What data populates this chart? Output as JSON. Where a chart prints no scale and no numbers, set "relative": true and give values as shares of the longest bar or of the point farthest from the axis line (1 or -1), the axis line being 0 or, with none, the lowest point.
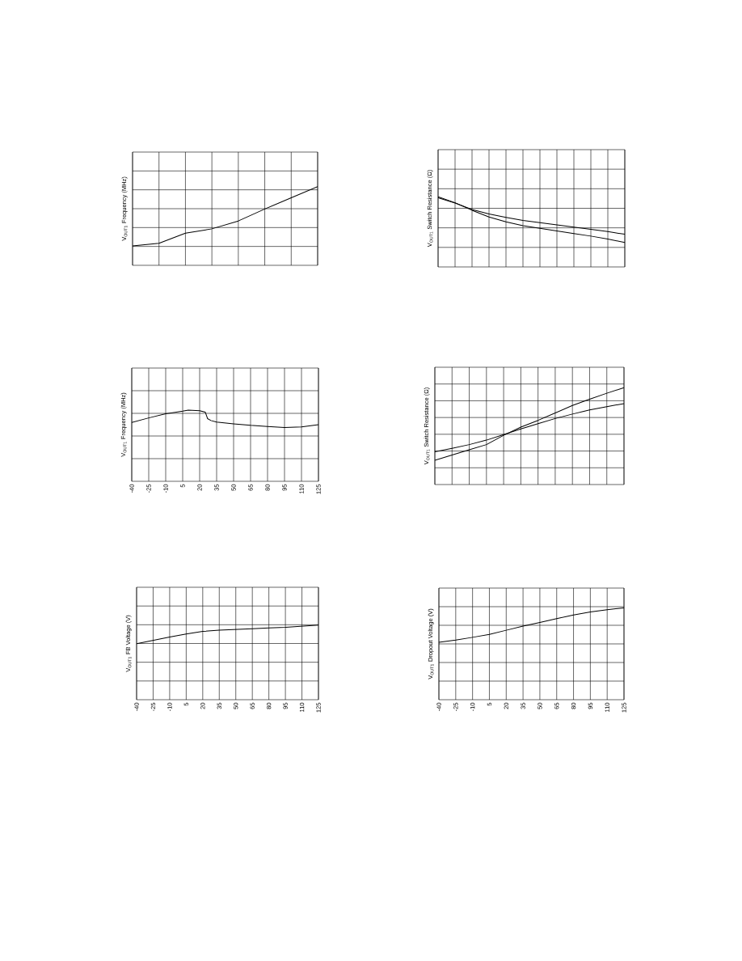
{
  "chart_data": [
    {
      "type": "line",
      "ylabel": "V$_{OUT1}$ Frequency (MHz)",
      "relative": true,
      "grid": true,
      "color": "#000000",
      "categories": [
        null,
        null,
        null,
        null,
        null,
        null,
        null,
        null
      ],
      "values": [
        0.246,
        0.28,
        0.408,
        0.464,
        0.564,
        0.716,
        0.858,
        1.0
      ]
    },
    {
      "type": "line",
      "ylabel": "V$_{OUT1}$ Switch Resistance (Ω)",
      "relative": true,
      "grid": true,
      "categories": [
        null,
        null,
        null,
        null,
        null,
        null,
        null,
        null,
        null,
        null,
        null,
        null
      ],
      "series": [
        {
          "color": "#000000",
          "values": [
            0.984,
            0.909,
            0.818,
            0.754,
            0.706,
            0.663,
            0.631,
            0.599,
            0.567,
            0.535,
            0.503,
            0.465
          ]
        },
        {
          "color": "#000000",
          "values": [
            1.0,
            0.914,
            0.807,
            0.711,
            0.642,
            0.588,
            0.551,
            0.513,
            0.476,
            0.439,
            0.396,
            0.348
          ]
        }
      ]
    },
    {
      "type": "line",
      "ylabel": "V$_{OUT1}$ Frequency (MHz)",
      "relative": true,
      "grid": true,
      "color": "#000000",
      "x": [
        -40,
        -25,
        -10,
        5,
        10,
        20,
        25,
        27,
        30,
        35,
        50,
        65,
        80,
        95,
        110,
        125
      ],
      "values": [
        0.827,
        0.89,
        0.948,
        0.984,
        1.0,
        0.99,
        0.97,
        0.88,
        0.853,
        0.832,
        0.806,
        0.785,
        0.77,
        0.754,
        0.764,
        0.796
      ],
      "xlim": [
        -40,
        125
      ],
      "xticks": [
        -40,
        -25,
        -10,
        5,
        20,
        35,
        50,
        65,
        80,
        95,
        110,
        125
      ]
    },
    {
      "type": "line",
      "ylabel": "V$_{OUT1}$ Switch Resistance (Ω)",
      "relative": true,
      "grid": true,
      "categories": [
        null,
        null,
        null,
        null,
        null,
        null,
        null,
        null,
        null,
        null,
        null,
        null
      ],
      "series": [
        {
          "color": "#000000",
          "values": [
            0.25,
            0.304,
            0.358,
            0.412,
            0.508,
            0.592,
            0.662,
            0.738,
            0.815,
            0.881,
            0.942,
            1.0
          ]
        },
        {
          "color": "#000000",
          "values": [
            0.338,
            0.373,
            0.412,
            0.458,
            0.515,
            0.573,
            0.627,
            0.681,
            0.727,
            0.769,
            0.804,
            0.835
          ]
        }
      ]
    },
    {
      "type": "line",
      "ylabel": "V$_{OUT1}$ FB Voltage (V)",
      "relative": true,
      "grid": true,
      "color": "#000000",
      "x": [
        -40,
        -25,
        -10,
        5,
        20,
        35,
        50,
        65,
        80,
        95,
        110,
        125
      ],
      "values": [
        0.75,
        0.795,
        0.84,
        0.88,
        0.915,
        0.93,
        0.94,
        0.95,
        0.96,
        0.97,
        0.985,
        1.0
      ],
      "xlim": [
        -40,
        125
      ],
      "xticks": [
        -40,
        -25,
        -10,
        5,
        20,
        35,
        50,
        65,
        80,
        95,
        110,
        125
      ]
    },
    {
      "type": "line",
      "ylabel": "V$_{OUT1}$ Dropout Voltage (V)",
      "relative": true,
      "grid": true,
      "color": "#000000",
      "x": [
        -40,
        -25,
        -10,
        5,
        20,
        35,
        50,
        65,
        80,
        95,
        110,
        125
      ],
      "values": [
        0.626,
        0.65,
        0.679,
        0.711,
        0.756,
        0.801,
        0.841,
        0.882,
        0.923,
        0.955,
        0.98,
        1.0
      ],
      "xlim": [
        -40,
        125
      ],
      "xticks": [
        -40,
        -25,
        -10,
        5,
        20,
        35,
        50,
        65,
        80,
        95,
        110,
        125
      ]
    }
  ]
}
